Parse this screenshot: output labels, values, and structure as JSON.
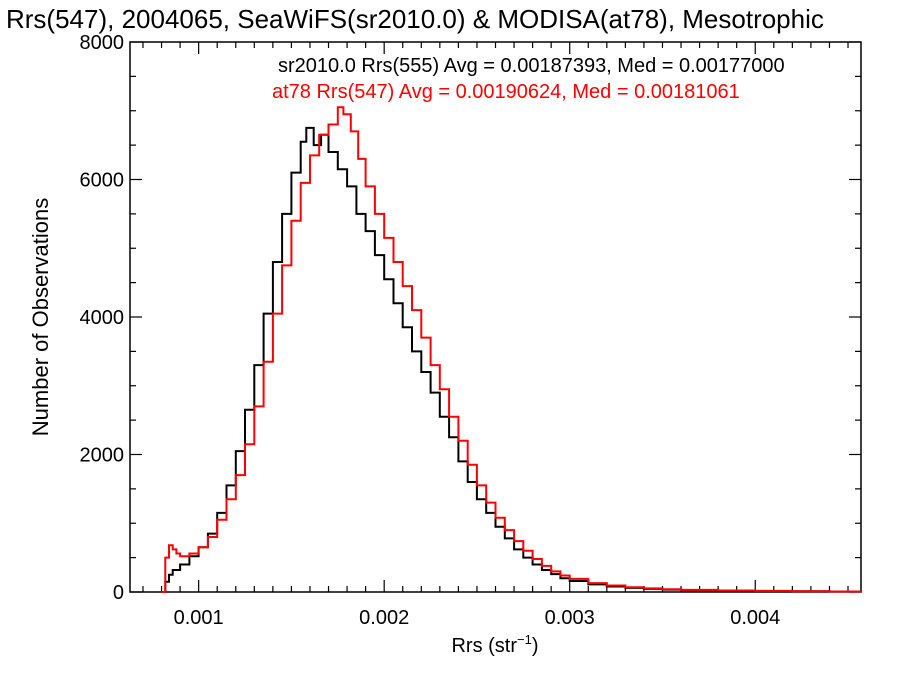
{
  "chart_data": {
    "type": "line",
    "title": "Rrs(547), 2004065, SeaWiFS(sr2010.0) & MODISA(at78), Mesotrophic",
    "xlabel_main": "Rrs (str",
    "xlabel_sup": "−1",
    "xlabel_close": ")",
    "ylabel": "Number of Observations",
    "xlim": [
      0.00063,
      0.00457
    ],
    "ylim": [
      0,
      8000
    ],
    "xticks": [
      {
        "v": 0.001,
        "label": "0.001"
      },
      {
        "v": 0.002,
        "label": "0.002"
      },
      {
        "v": 0.003,
        "label": "0.003"
      },
      {
        "v": 0.004,
        "label": "0.004"
      }
    ],
    "yticks": [
      {
        "v": 0,
        "label": "0"
      },
      {
        "v": 2000,
        "label": "2000"
      },
      {
        "v": 4000,
        "label": "4000"
      },
      {
        "v": 6000,
        "label": "6000"
      },
      {
        "v": 8000,
        "label": "8000"
      }
    ],
    "grid": false,
    "legend_position": "top-right",
    "series": [
      {
        "name": "sr2010.0 Rrs(555) Avg = 0.00187393, Med = 0.00177000",
        "color": "#000000",
        "points": [
          [
            0.0008,
            0
          ],
          [
            0.00082,
            150
          ],
          [
            0.00084,
            250
          ],
          [
            0.00086,
            320
          ],
          [
            0.0009,
            400
          ],
          [
            0.00095,
            520
          ],
          [
            0.001,
            650
          ],
          [
            0.00105,
            850
          ],
          [
            0.0011,
            1150
          ],
          [
            0.00115,
            1550
          ],
          [
            0.0012,
            2050
          ],
          [
            0.00125,
            2650
          ],
          [
            0.0013,
            3300
          ],
          [
            0.00135,
            4050
          ],
          [
            0.0014,
            4800
          ],
          [
            0.00145,
            5500
          ],
          [
            0.0015,
            6100
          ],
          [
            0.00155,
            6550
          ],
          [
            0.00158,
            6750
          ],
          [
            0.00162,
            6500
          ],
          [
            0.00166,
            6650
          ],
          [
            0.0017,
            6400
          ],
          [
            0.00175,
            6150
          ],
          [
            0.0018,
            5900
          ],
          [
            0.00185,
            5500
          ],
          [
            0.0019,
            5250
          ],
          [
            0.00195,
            4900
          ],
          [
            0.002,
            4550
          ],
          [
            0.00205,
            4200
          ],
          [
            0.0021,
            3850
          ],
          [
            0.00215,
            3500
          ],
          [
            0.0022,
            3200
          ],
          [
            0.00225,
            2900
          ],
          [
            0.0023,
            2550
          ],
          [
            0.00235,
            2250
          ],
          [
            0.0024,
            1900
          ],
          [
            0.00245,
            1600
          ],
          [
            0.0025,
            1350
          ],
          [
            0.00255,
            1150
          ],
          [
            0.0026,
            950
          ],
          [
            0.00265,
            780
          ],
          [
            0.0027,
            620
          ],
          [
            0.00275,
            500
          ],
          [
            0.0028,
            400
          ],
          [
            0.00285,
            320
          ],
          [
            0.0029,
            260
          ],
          [
            0.00295,
            200
          ],
          [
            0.003,
            160
          ],
          [
            0.0031,
            110
          ],
          [
            0.0032,
            80
          ],
          [
            0.0033,
            60
          ],
          [
            0.0034,
            45
          ],
          [
            0.0035,
            35
          ],
          [
            0.0036,
            25
          ],
          [
            0.0038,
            20
          ],
          [
            0.004,
            15
          ],
          [
            0.0042,
            12
          ],
          [
            0.0044,
            8
          ],
          [
            0.00457,
            5
          ]
        ]
      },
      {
        "name": "at78 Rrs(547) Avg = 0.00190624, Med = 0.00181061",
        "color": "#ff0000",
        "points": [
          [
            0.0008,
            0
          ],
          [
            0.00082,
            500
          ],
          [
            0.00084,
            680
          ],
          [
            0.00086,
            620
          ],
          [
            0.00088,
            560
          ],
          [
            0.0009,
            520
          ],
          [
            0.00095,
            560
          ],
          [
            0.001,
            650
          ],
          [
            0.00105,
            800
          ],
          [
            0.0011,
            1050
          ],
          [
            0.00115,
            1350
          ],
          [
            0.0012,
            1700
          ],
          [
            0.00125,
            2150
          ],
          [
            0.0013,
            2700
          ],
          [
            0.00135,
            3350
          ],
          [
            0.0014,
            4050
          ],
          [
            0.00145,
            4750
          ],
          [
            0.0015,
            5400
          ],
          [
            0.00155,
            5950
          ],
          [
            0.0016,
            6350
          ],
          [
            0.00165,
            6650
          ],
          [
            0.0017,
            6800
          ],
          [
            0.00175,
            7050
          ],
          [
            0.00178,
            6950
          ],
          [
            0.00182,
            6700
          ],
          [
            0.00186,
            6300
          ],
          [
            0.0019,
            5900
          ],
          [
            0.00195,
            5500
          ],
          [
            0.002,
            5150
          ],
          [
            0.00205,
            4800
          ],
          [
            0.0021,
            4450
          ],
          [
            0.00215,
            4100
          ],
          [
            0.0022,
            3700
          ],
          [
            0.00225,
            3300
          ],
          [
            0.0023,
            2950
          ],
          [
            0.00235,
            2550
          ],
          [
            0.0024,
            2200
          ],
          [
            0.00245,
            1850
          ],
          [
            0.0025,
            1550
          ],
          [
            0.00255,
            1300
          ],
          [
            0.0026,
            1080
          ],
          [
            0.00265,
            900
          ],
          [
            0.0027,
            740
          ],
          [
            0.00275,
            600
          ],
          [
            0.0028,
            480
          ],
          [
            0.00285,
            380
          ],
          [
            0.0029,
            300
          ],
          [
            0.00295,
            240
          ],
          [
            0.003,
            190
          ],
          [
            0.0031,
            130
          ],
          [
            0.0032,
            95
          ],
          [
            0.0033,
            70
          ],
          [
            0.0034,
            52
          ],
          [
            0.0035,
            40
          ],
          [
            0.0036,
            30
          ],
          [
            0.0038,
            22
          ],
          [
            0.004,
            16
          ],
          [
            0.0042,
            12
          ],
          [
            0.0044,
            8
          ],
          [
            0.00457,
            5
          ]
        ]
      }
    ]
  }
}
